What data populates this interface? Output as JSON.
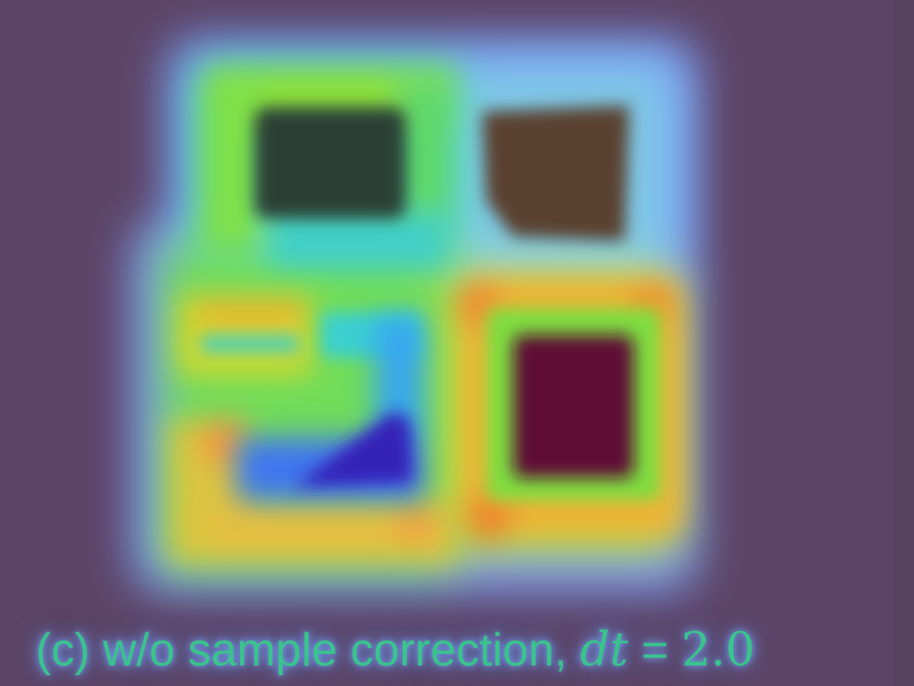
{
  "figure": {
    "caption": {
      "label": "(c) w/o sample correction, ",
      "variable": "dt",
      "equals": " = ",
      "value": "2.0"
    },
    "colors": {
      "background": "#5c4466",
      "glow_blue": "#7aa0ff",
      "cyan": "#35d6c8",
      "green": "#6be04a",
      "yellow": "#d8e02a",
      "orange": "#f0a030",
      "region_dark_green": "#2a3f34",
      "region_brown": "#5a412e",
      "region_maroon": "#5e0e34",
      "region_deep_blue": "#3a2ab8",
      "caption_text": "#39c48c"
    }
  }
}
